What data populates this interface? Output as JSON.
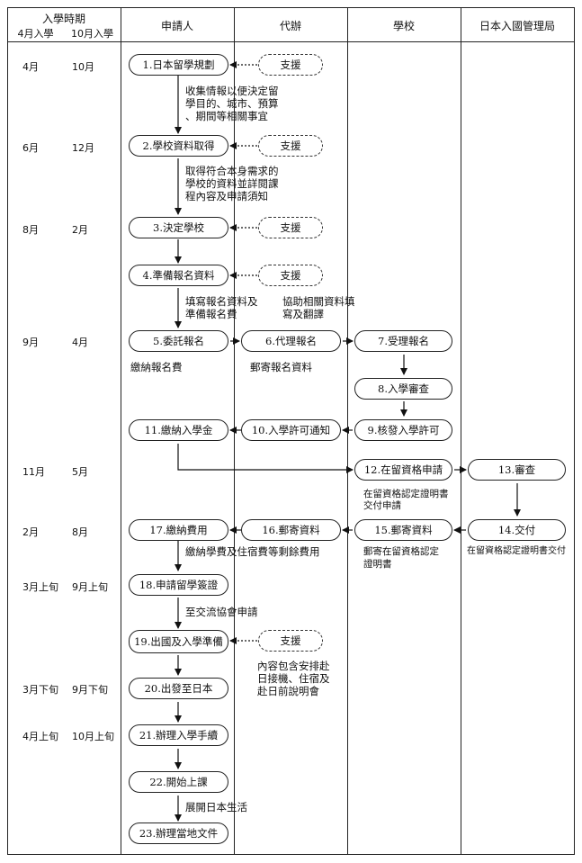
{
  "header": {
    "period_title": "入學時期",
    "april_intake": "4月入學",
    "october_intake": "10月入學",
    "applicant": "申請人",
    "agent": "代辦",
    "school": "學校",
    "immigration": "日本入國管理局"
  },
  "times": [
    {
      "a": "4月",
      "b": "10月"
    },
    {
      "a": "6月",
      "b": "12月"
    },
    {
      "a": "8月",
      "b": "2月"
    },
    {
      "a": "9月",
      "b": "4月"
    },
    {
      "a": "11月",
      "b": "5月"
    },
    {
      "a": "2月",
      "b": "8月"
    },
    {
      "a": "3月上旬",
      "b": "9月上旬"
    },
    {
      "a": "3月下旬",
      "b": "9月下旬"
    },
    {
      "a": "4月上旬",
      "b": "10月上旬"
    }
  ],
  "steps": {
    "s1": "1.日本留學規劃",
    "s2": "2.學校資料取得",
    "s3": "3.決定學校",
    "s4": "4.準備報名資料",
    "s5": "5.委託報名",
    "s6": "6.代理報名",
    "s7": "7.受理報名",
    "s8": "8.入學審查",
    "s9": "9.核發入學許可",
    "s10": "10.入學許可通知",
    "s11": "11.繳納入學金",
    "s12": "12.在留資格申請",
    "s13": "13.審查",
    "s14": "14.交付",
    "s15": "15.郵寄資料",
    "s16": "16.郵寄資料",
    "s17": "17.繳納費用",
    "s18": "18.申請留學簽證",
    "s19": "19.出國及入學準備",
    "s20": "20.出發至日本",
    "s21": "21.辦理入學手續",
    "s22": "22.開始上課",
    "s23": "23.辦理當地文件"
  },
  "support_label": "支援",
  "notes": {
    "n1a": "收集情報以便決定留",
    "n1b": "學目的、城市、預算",
    "n1c": "、期間等相關事宜",
    "n2a": "取得符合本身需求的",
    "n2b": "學校的資料並詳閱課",
    "n2c": "程內容及申請須知",
    "n4a": "填寫報名資料及",
    "n4b": "準備報名費",
    "n4c": "協助相關資料填",
    "n4d": "寫及翻譯",
    "n5": "繳納報名費",
    "n6": "郵寄報名資料",
    "n12a": "在留資格認定證明書",
    "n12b": "交付申請",
    "n15a": "郵寄在留資格認定",
    "n15b": "證明書",
    "n14": "在留資格認定證明書交付",
    "n17": "繳納學費及住宿費等剩餘費用",
    "n18": "至交流協會申請",
    "n19a": "內容包含安排赴",
    "n19b": "日接機、住宿及",
    "n19c": "赴日前說明會",
    "n22": "展開日本生活"
  }
}
